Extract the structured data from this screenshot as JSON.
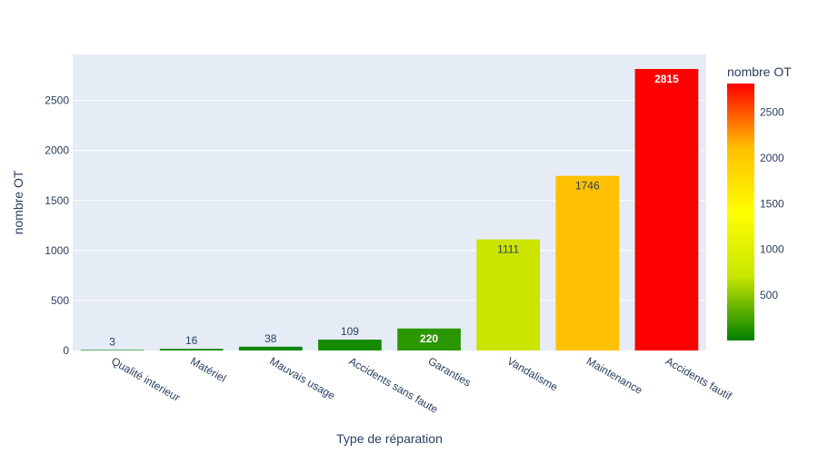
{
  "chart_data": {
    "type": "bar",
    "title": "",
    "xlabel": "Type de réparation",
    "ylabel": "nombre OT",
    "categories": [
      "Qualité interieur",
      "Matériel",
      "Mauvais usage",
      "Accidents sans faute",
      "Garanties",
      "Vandalisme",
      "Maintenance",
      "Accidents fautif"
    ],
    "values": [
      3,
      16,
      38,
      109,
      220,
      1111,
      1746,
      2815
    ],
    "ylim": [
      0,
      2960
    ],
    "yticks": [
      0,
      500,
      1000,
      1500,
      2000,
      2500
    ],
    "grid": true,
    "plot_background": "#e5ecf6",
    "colorbar": {
      "title": "nombre OT",
      "range": [
        3,
        2815
      ],
      "ticks": [
        500,
        1000,
        1500,
        2000,
        2500
      ],
      "colorscale": [
        "#008000",
        "#c8e600",
        "#ffff00",
        "#ffbf00",
        "#ff0000"
      ]
    },
    "bar_colors": [
      "#0c830c",
      "#0b850b",
      "#0d860d",
      "#178b00",
      "#2a9600",
      "#cbe400",
      "#fec000",
      "#ff0000"
    ]
  }
}
